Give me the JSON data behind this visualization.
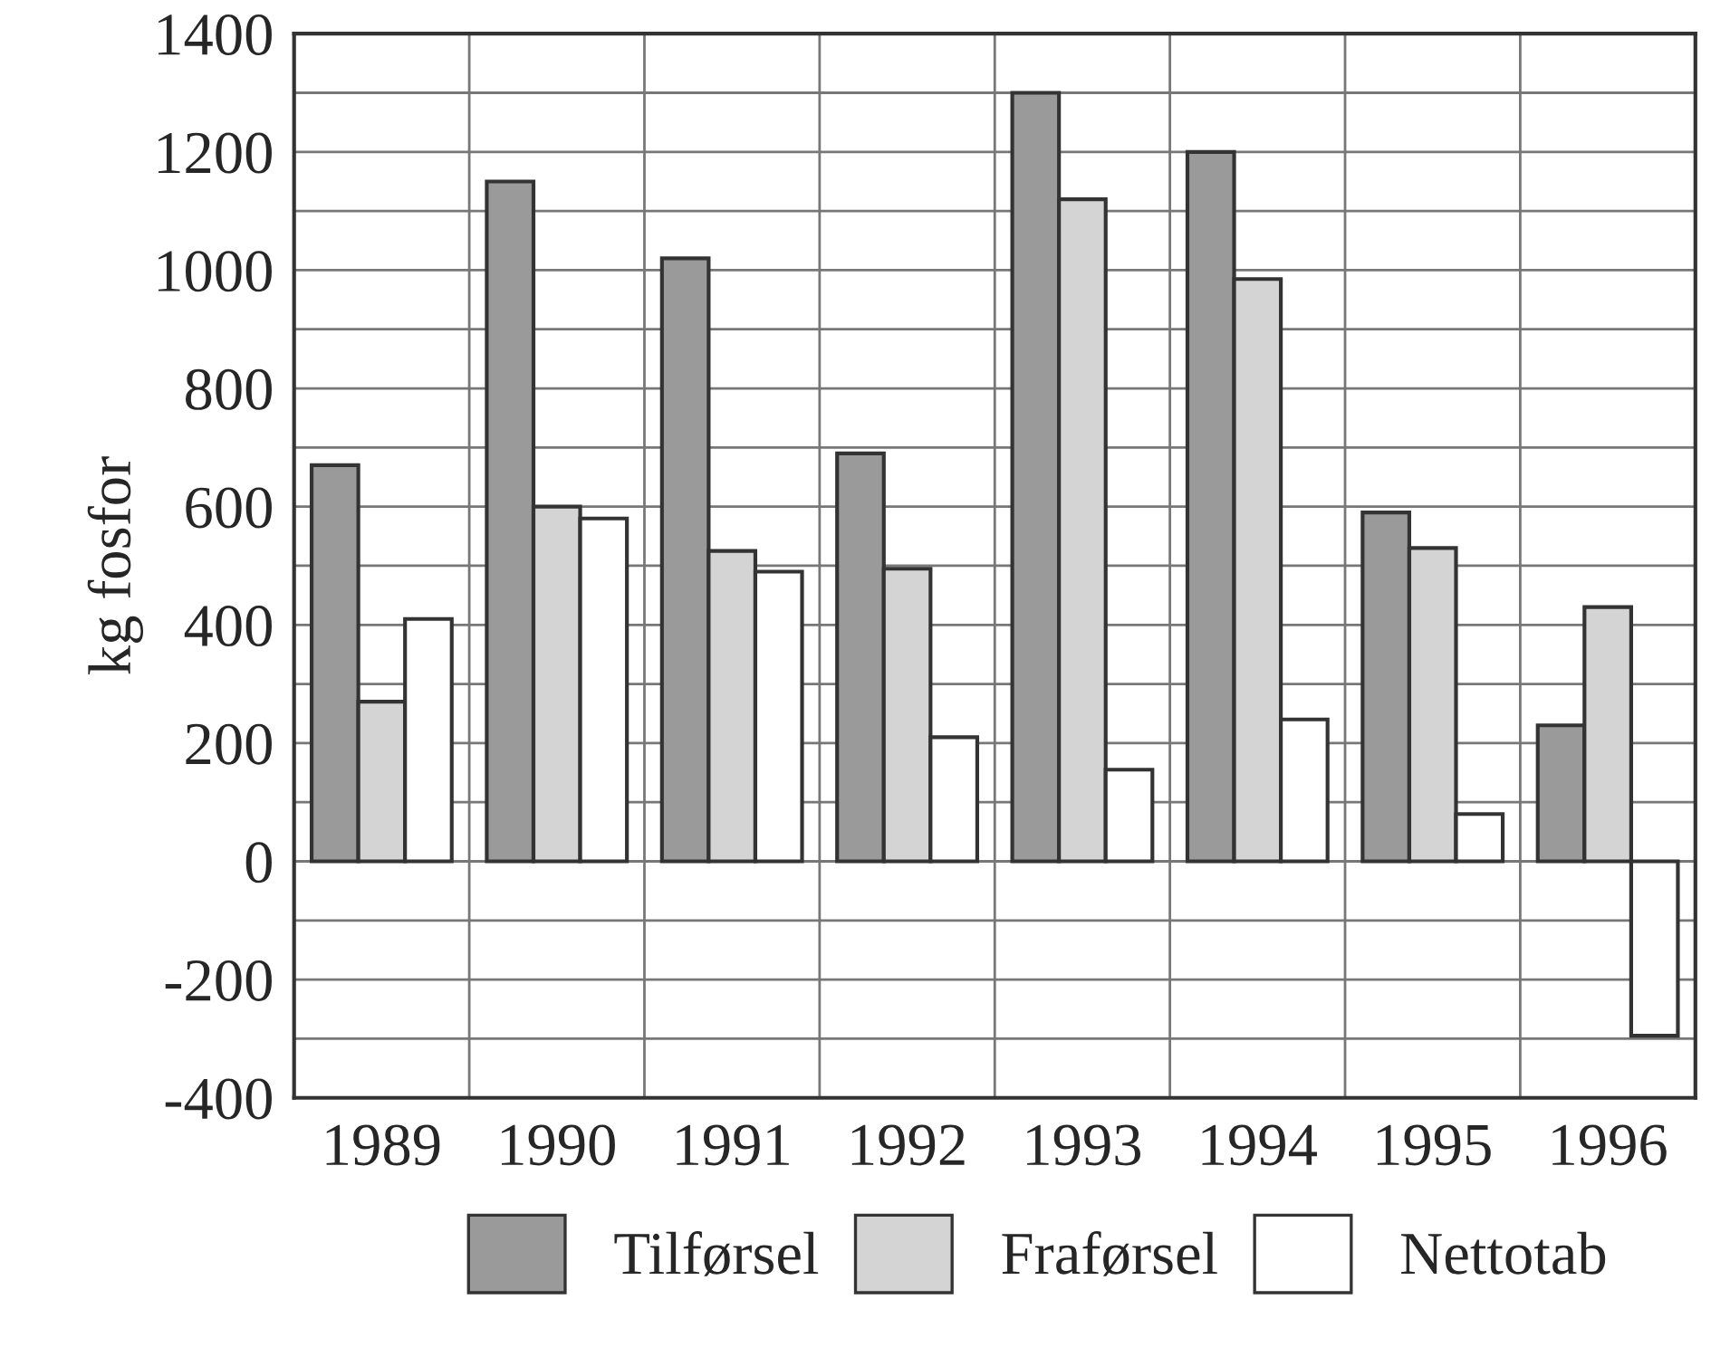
{
  "chart_data": {
    "type": "bar",
    "ylabel": "kg fosfor",
    "categories": [
      "1989",
      "1990",
      "1991",
      "1992",
      "1993",
      "1994",
      "1995",
      "1996"
    ],
    "series": [
      {
        "name": "Tilførsel",
        "color": "#9a9a9a",
        "values": [
          670,
          1150,
          1020,
          690,
          1300,
          1200,
          590,
          230
        ]
      },
      {
        "name": "Fraførsel",
        "color": "#d4d4d4",
        "values": [
          270,
          600,
          525,
          495,
          1120,
          985,
          530,
          430
        ]
      },
      {
        "name": "Nettotab",
        "color": "#ffffff",
        "values": [
          410,
          580,
          490,
          210,
          155,
          240,
          80,
          -295
        ]
      }
    ],
    "ylim": [
      -400,
      1400
    ],
    "yticks": [
      -400,
      {
        "value": -300,
        "label": null
      },
      -200,
      {
        "value": -100,
        "label": null
      },
      0,
      {
        "value": 100,
        "label": null
      },
      200,
      {
        "value": 300,
        "label": null
      },
      400,
      {
        "value": 500,
        "label": null
      },
      600,
      {
        "value": 700,
        "label": null
      },
      800,
      {
        "value": 900,
        "label": null
      },
      1000,
      {
        "value": 1100,
        "label": null
      },
      1200,
      {
        "value": 1300,
        "label": null
      },
      1400
    ],
    "grid": true,
    "legend": "bottom"
  }
}
